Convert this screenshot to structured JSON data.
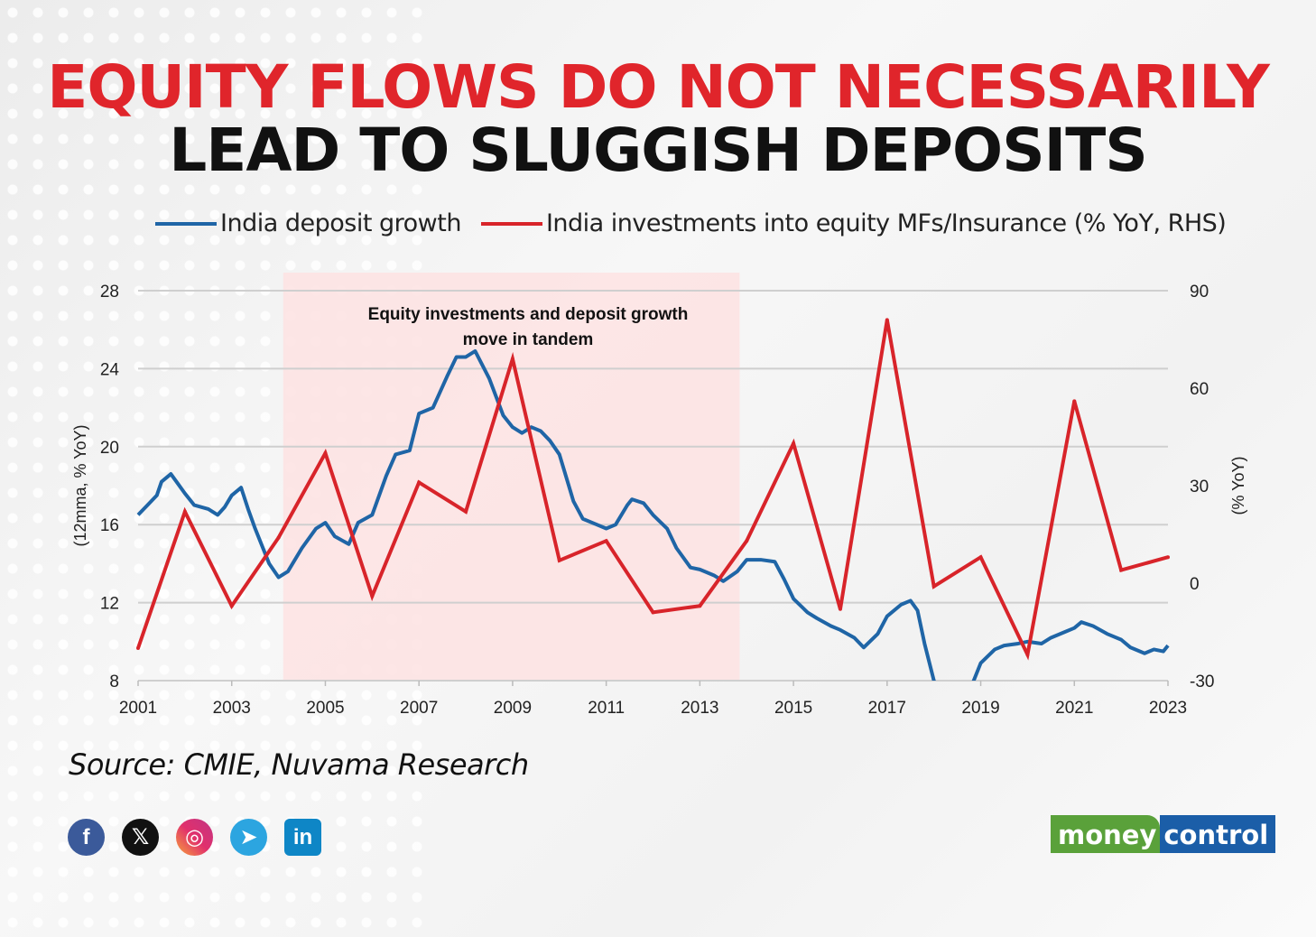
{
  "title_line1": "EQUITY FLOWS DO NOT NECESSARILY",
  "title_line2": "LEAD TO SLUGGISH DEPOSITS",
  "source": "Source: CMIE, Nuvama Research",
  "social_icons": [
    "facebook-icon",
    "x-icon",
    "instagram-icon",
    "telegram-icon",
    "linkedin-icon"
  ],
  "logo": {
    "part1": "money",
    "part2": "control"
  },
  "colors": {
    "blue": "#1f65a6",
    "red": "#d8242a",
    "shade": "#fde3e3",
    "title_red": "#e0252b"
  },
  "chart_data": {
    "type": "line",
    "title": "EQUITY FLOWS DO NOT NECESSARILY LEAD TO SLUGGISH DEPOSITS",
    "ylabel_left": "(12mma, % YoY)",
    "ylabel_right": "(% YoY)",
    "ylim_left": [
      8,
      28
    ],
    "ylim_right": [
      -30,
      90
    ],
    "yticks_left": [
      "28",
      "24",
      "20",
      "16",
      "12",
      "8"
    ],
    "yticks_right": [
      "90",
      "60",
      "30",
      "0",
      "-30"
    ],
    "xticks": [
      "2001",
      "2003",
      "2005",
      "2007",
      "2009",
      "2011",
      "2013",
      "2015",
      "2017",
      "2019",
      "2021",
      "2023"
    ],
    "xlim": [
      2001,
      2023
    ],
    "grid": true,
    "legend_position": "top",
    "annotation": {
      "line1": "Equity investments and deposit growth",
      "line2": "move in tandem",
      "shaded_range": [
        2004.1,
        2013.85
      ]
    },
    "series": [
      {
        "name": "India deposit growth",
        "axis": "left",
        "points": [
          [
            2001.0,
            16.5
          ],
          [
            2001.2,
            17.0
          ],
          [
            2001.4,
            17.5
          ],
          [
            2001.5,
            18.2
          ],
          [
            2001.7,
            18.6
          ],
          [
            2001.85,
            18.1
          ],
          [
            2002.0,
            17.6
          ],
          [
            2002.2,
            17.0
          ],
          [
            2002.5,
            16.8
          ],
          [
            2002.7,
            16.5
          ],
          [
            2002.85,
            16.9
          ],
          [
            2003.0,
            17.5
          ],
          [
            2003.2,
            17.9
          ],
          [
            2003.35,
            16.8
          ],
          [
            2003.5,
            15.8
          ],
          [
            2003.8,
            14.0
          ],
          [
            2004.0,
            13.3
          ],
          [
            2004.2,
            13.6
          ],
          [
            2004.5,
            14.8
          ],
          [
            2004.8,
            15.8
          ],
          [
            2005.0,
            16.1
          ],
          [
            2005.2,
            15.4
          ],
          [
            2005.5,
            15.0
          ],
          [
            2005.7,
            16.1
          ],
          [
            2006.0,
            16.5
          ],
          [
            2006.3,
            18.5
          ],
          [
            2006.5,
            19.6
          ],
          [
            2006.8,
            19.8
          ],
          [
            2007.0,
            21.7
          ],
          [
            2007.3,
            22.0
          ],
          [
            2007.6,
            23.6
          ],
          [
            2007.8,
            24.6
          ],
          [
            2008.0,
            24.6
          ],
          [
            2008.2,
            24.9
          ],
          [
            2008.5,
            23.5
          ],
          [
            2008.8,
            21.6
          ],
          [
            2009.0,
            21.0
          ],
          [
            2009.2,
            20.7
          ],
          [
            2009.4,
            21.0
          ],
          [
            2009.6,
            20.8
          ],
          [
            2009.8,
            20.3
          ],
          [
            2010.0,
            19.6
          ],
          [
            2010.3,
            17.2
          ],
          [
            2010.5,
            16.3
          ],
          [
            2010.8,
            16.0
          ],
          [
            2011.0,
            15.8
          ],
          [
            2011.2,
            16.0
          ],
          [
            2011.45,
            17.0
          ],
          [
            2011.55,
            17.3
          ],
          [
            2011.8,
            17.1
          ],
          [
            2012.0,
            16.5
          ],
          [
            2012.3,
            15.8
          ],
          [
            2012.5,
            14.8
          ],
          [
            2012.8,
            13.8
          ],
          [
            2013.0,
            13.7
          ],
          [
            2013.3,
            13.4
          ],
          [
            2013.5,
            13.1
          ],
          [
            2013.8,
            13.6
          ],
          [
            2014.0,
            14.2
          ],
          [
            2014.3,
            14.2
          ],
          [
            2014.6,
            14.1
          ],
          [
            2014.8,
            13.2
          ],
          [
            2015.0,
            12.2
          ],
          [
            2015.3,
            11.5
          ],
          [
            2015.5,
            11.2
          ],
          [
            2015.8,
            10.8
          ],
          [
            2016.0,
            10.6
          ],
          [
            2016.3,
            10.2
          ],
          [
            2016.5,
            9.7
          ],
          [
            2016.8,
            10.4
          ],
          [
            2017.0,
            11.3
          ],
          [
            2017.3,
            11.9
          ],
          [
            2017.5,
            12.1
          ],
          [
            2017.65,
            11.6
          ],
          [
            2017.8,
            9.9
          ],
          [
            2018.0,
            8.0
          ],
          [
            2018.3,
            6.5
          ],
          [
            2018.6,
            6.5
          ],
          [
            2018.85,
            8.0
          ],
          [
            2019.0,
            8.9
          ],
          [
            2019.3,
            9.6
          ],
          [
            2019.5,
            9.8
          ],
          [
            2019.8,
            9.9
          ],
          [
            2020.0,
            10.0
          ],
          [
            2020.3,
            9.9
          ],
          [
            2020.5,
            10.2
          ],
          [
            2020.8,
            10.5
          ],
          [
            2021.0,
            10.7
          ],
          [
            2021.15,
            11.0
          ],
          [
            2021.4,
            10.8
          ],
          [
            2021.7,
            10.4
          ],
          [
            2022.0,
            10.1
          ],
          [
            2022.2,
            9.7
          ],
          [
            2022.5,
            9.4
          ],
          [
            2022.7,
            9.6
          ],
          [
            2022.9,
            9.5
          ],
          [
            2023.0,
            9.8
          ]
        ]
      },
      {
        "name": "India investments into equity MFs/Insurance (% YoY, RHS)",
        "axis": "right",
        "x": [
          2001,
          2002,
          2003,
          2004,
          2005,
          2006,
          2007,
          2008,
          2009,
          2010,
          2011,
          2012,
          2013,
          2014,
          2015,
          2016,
          2017,
          2018,
          2019,
          2020,
          2021,
          2022,
          2023
        ],
        "values": [
          -20,
          22,
          -7,
          14,
          40,
          -4,
          31,
          22,
          69,
          7,
          13,
          -9,
          -7,
          13,
          43,
          -8,
          81,
          -1,
          8,
          -22,
          56,
          4,
          8
        ]
      }
    ]
  }
}
